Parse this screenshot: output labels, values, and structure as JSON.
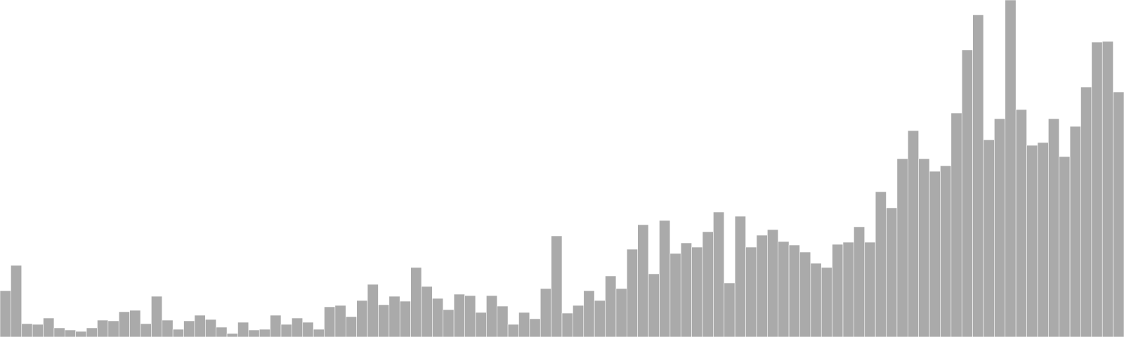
{
  "chart_data": {
    "type": "bar",
    "title": "",
    "xlabel": "",
    "ylabel": "",
    "grid": false,
    "legend": false,
    "axes_visible": false,
    "bar_color": "#aaaaaa",
    "bar_edge_color": "#ffffff",
    "background": "#ffffff",
    "ylim": [
      0,
      480
    ],
    "values": [
      66,
      102,
      19,
      18,
      27,
      13,
      10,
      8,
      13,
      24,
      23,
      36,
      38,
      19,
      58,
      24,
      11,
      23,
      31,
      25,
      14,
      5,
      21,
      10,
      11,
      31,
      18,
      27,
      21,
      11,
      43,
      45,
      29,
      52,
      75,
      46,
      58,
      51,
      99,
      72,
      55,
      39,
      61,
      59,
      35,
      59,
      44,
      18,
      35,
      26,
      69,
      144,
      34,
      45,
      66,
      52,
      87,
      69,
      125,
      160,
      90,
      166,
      119,
      134,
      128,
      150,
      178,
      77,
      172,
      128,
      145,
      153,
      136,
      131,
      121,
      105,
      99,
      132,
      135,
      157,
      135,
      207,
      184,
      254,
      294,
      254,
      236,
      244,
      319,
      409,
      459,
      281,
      311,
      484,
      324,
      273,
      277,
      311,
      257,
      300,
      356,
      420,
      421,
      349
    ]
  }
}
